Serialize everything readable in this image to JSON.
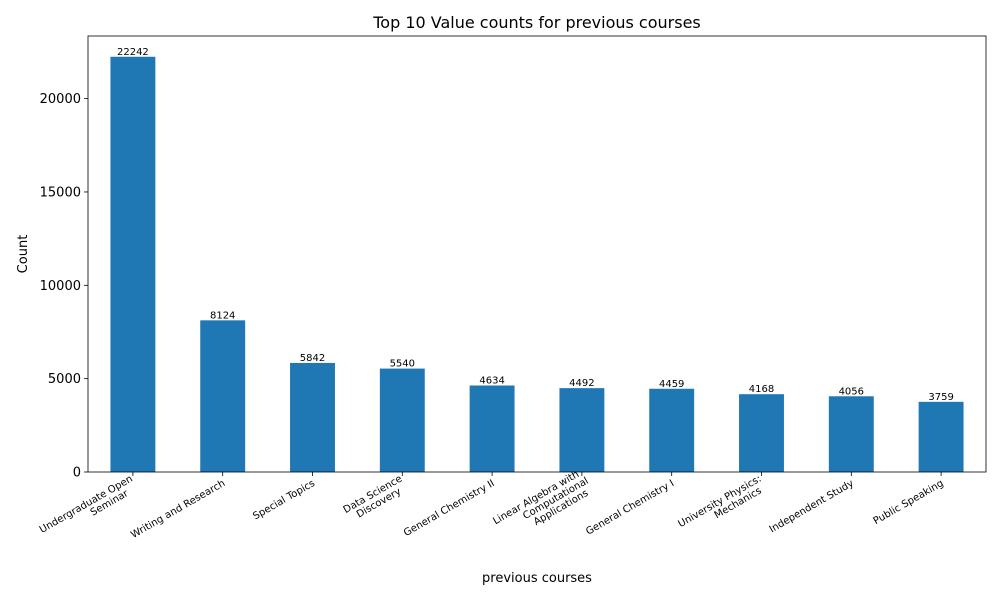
{
  "chart_data": {
    "type": "bar",
    "title": "Top 10 Value counts for previous courses",
    "xlabel": "previous courses",
    "ylabel": "Count",
    "categories": [
      "Undergraduate Open Seminar",
      "Writing and Research",
      "Special Topics",
      "Data Science Discovery",
      "General Chemistry II",
      "Linear Algebra with Computational Applications",
      "General Chemistry I",
      "University Physics: Mechanics",
      "Independent Study",
      "Public Speaking"
    ],
    "category_lines": [
      [
        "Undergraduate Open",
        "Seminar"
      ],
      [
        "Writing and Research"
      ],
      [
        "Special Topics"
      ],
      [
        "Data Science",
        "Discovery"
      ],
      [
        "General Chemistry II"
      ],
      [
        "Linear Algebra with",
        "Computational",
        "Applications"
      ],
      [
        "General Chemistry I"
      ],
      [
        "University Physics:",
        "Mechanics"
      ],
      [
        "Independent Study"
      ],
      [
        "Public Speaking"
      ]
    ],
    "values": [
      22242,
      8124,
      5842,
      5540,
      4634,
      4492,
      4459,
      4168,
      4056,
      3759
    ],
    "data_labels": [
      "22242",
      "8124",
      "5842",
      "5540",
      "4634",
      "4492",
      "4459",
      "4168",
      "4056",
      "3759"
    ],
    "ylim": [
      0,
      23355
    ],
    "yticks": [
      0,
      5000,
      10000,
      15000,
      20000
    ],
    "ytick_labels": [
      "0",
      "5000",
      "10000",
      "15000",
      "20000"
    ],
    "bar_color": "#1f77b4",
    "grid": false,
    "legend": "none"
  }
}
